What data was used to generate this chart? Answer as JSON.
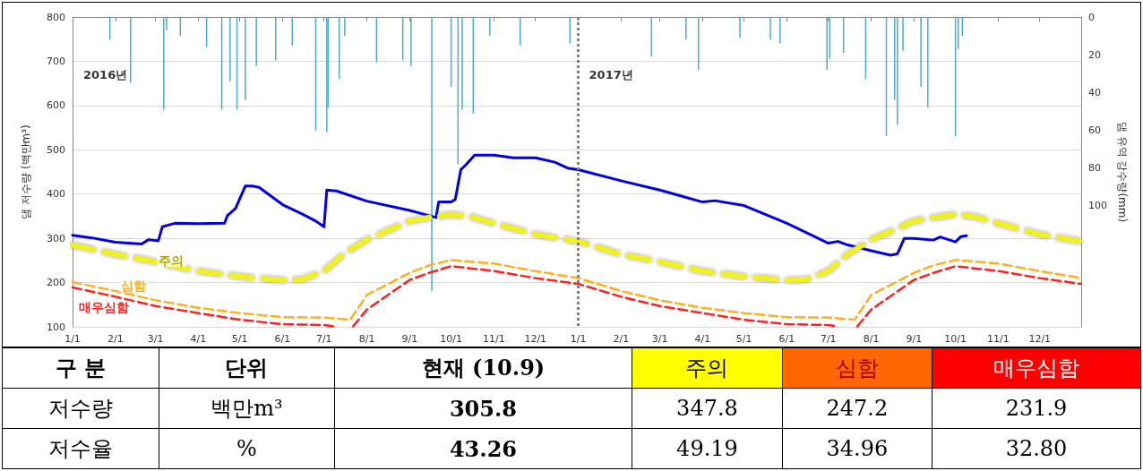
{
  "chart_data": [
    {
      "type": "line",
      "xlabel": null,
      "ylabel": "댐 저수량 (백만m³)",
      "y2label": "댐 유역 강수량(mm)",
      "annotations": [
        "2016년",
        "2017년"
      ],
      "xlim": [
        "2016-01-01",
        "2017-12-31"
      ],
      "xticks": [
        {
          "value": "2016-01-01",
          "label": "1/1"
        },
        {
          "value": "2016-02-01",
          "label": "2/1"
        },
        {
          "value": "2016-03-01",
          "label": "3/1"
        },
        {
          "value": "2016-04-01",
          "label": "4/1"
        },
        {
          "value": "2016-05-01",
          "label": "5/1"
        },
        {
          "value": "2016-06-01",
          "label": "6/1"
        },
        {
          "value": "2016-07-01",
          "label": "7/1"
        },
        {
          "value": "2016-08-01",
          "label": "8/1"
        },
        {
          "value": "2016-09-01",
          "label": "9/1"
        },
        {
          "value": "2016-10-01",
          "label": "10/1"
        },
        {
          "value": "2016-11-01",
          "label": "11/1"
        },
        {
          "value": "2016-12-01",
          "label": "12/1"
        },
        {
          "value": "2017-01-01",
          "label": "1/1"
        },
        {
          "value": "2017-02-01",
          "label": "2/1"
        },
        {
          "value": "2017-03-01",
          "label": "3/1"
        },
        {
          "value": "2017-04-01",
          "label": "4/1"
        },
        {
          "value": "2017-05-01",
          "label": "5/1"
        },
        {
          "value": "2017-06-01",
          "label": "6/1"
        },
        {
          "value": "2017-07-01",
          "label": "7/1"
        },
        {
          "value": "2017-08-01",
          "label": "8/1"
        },
        {
          "value": "2017-09-01",
          "label": "9/1"
        },
        {
          "value": "2017-10-01",
          "label": "10/1"
        },
        {
          "value": "2017-11-01",
          "label": "11/1"
        },
        {
          "value": "2017-12-01",
          "label": "12/1"
        }
      ],
      "ylim": [
        100,
        800
      ],
      "yticks": [
        100,
        200,
        300,
        400,
        500,
        600,
        700,
        800
      ],
      "y2lim": [
        164,
        0
      ],
      "y2ticks": [
        0,
        20,
        40,
        60,
        80,
        100
      ],
      "grid": "y",
      "legend": false,
      "ref_lines": [
        {
          "axis": "x",
          "value": "2017-01-01",
          "color": "#808080",
          "line_style": "dotted"
        }
      ],
      "series": [
        {
          "type": "bar",
          "axis": "y2",
          "color": "#4bacc6",
          "x": [
            "2016-01-28",
            "2016-02-12",
            "2016-03-07",
            "2016-03-09",
            "2016-03-19",
            "2016-04-07",
            "2016-04-18",
            "2016-04-24",
            "2016-04-29",
            "2016-05-05",
            "2016-05-13",
            "2016-05-27",
            "2016-06-08",
            "2016-06-25",
            "2016-07-03",
            "2016-07-04",
            "2016-07-12",
            "2016-07-16",
            "2016-08-08",
            "2016-08-27",
            "2016-09-02",
            "2016-09-17",
            "2016-10-01",
            "2016-10-06",
            "2016-10-09",
            "2016-10-17",
            "2016-10-29",
            "2016-11-20",
            "2016-12-26",
            "2017-02-23",
            "2017-03-20",
            "2017-03-29",
            "2017-04-28",
            "2017-05-20",
            "2017-05-27",
            "2017-06-30",
            "2017-07-02",
            "2017-07-12",
            "2017-07-28",
            "2017-08-12",
            "2017-08-18",
            "2017-08-20",
            "2017-08-24",
            "2017-09-06",
            "2017-09-11",
            "2017-10-01",
            "2017-10-03",
            "2017-10-06"
          ],
          "values": [
            12,
            35,
            49,
            7,
            10,
            16,
            49,
            34,
            49,
            44,
            26,
            23,
            15,
            60,
            61,
            48,
            33,
            10,
            24,
            23,
            26,
            145,
            37,
            78,
            49,
            51,
            10,
            15,
            14,
            21,
            12,
            28,
            11,
            12,
            14,
            28,
            22,
            19,
            33,
            63,
            44,
            57,
            18,
            37,
            48,
            63,
            17,
            10
          ]
        },
        {
          "type": "line",
          "color": "#0000e0",
          "x": [
            "2016-01-01",
            "2016-01-15",
            "2016-02-01",
            "2016-02-20",
            "2016-02-25",
            "2016-03-03",
            "2016-03-06",
            "2016-03-15",
            "2016-04-01",
            "2016-04-20",
            "2016-04-22",
            "2016-04-28",
            "2016-05-05",
            "2016-05-10",
            "2016-05-15",
            "2016-06-01",
            "2016-06-15",
            "2016-06-25",
            "2016-07-01",
            "2016-07-03",
            "2016-07-10",
            "2016-08-01",
            "2016-09-01",
            "2016-09-20",
            "2016-09-22",
            "2016-10-01",
            "2016-10-04",
            "2016-10-08",
            "2016-10-12",
            "2016-10-18",
            "2016-11-01",
            "2016-11-15",
            "2016-12-01",
            "2016-12-15",
            "2016-12-25",
            "2017-01-01",
            "2017-02-01",
            "2017-03-01",
            "2017-04-01",
            "2017-04-10",
            "2017-05-01",
            "2017-06-01",
            "2017-07-01",
            "2017-07-08",
            "2017-07-15",
            "2017-08-01",
            "2017-08-15",
            "2017-08-20",
            "2017-08-25",
            "2017-09-01",
            "2017-09-15",
            "2017-09-20",
            "2017-10-01",
            "2017-10-05",
            "2017-10-09"
          ],
          "values": [
            307,
            301,
            291,
            287,
            297,
            294,
            326,
            334,
            333,
            334,
            351,
            368,
            418,
            418,
            415,
            376,
            355,
            339,
            326,
            409,
            407,
            384,
            363,
            347,
            382,
            382,
            388,
            455,
            467,
            488,
            488,
            482,
            482,
            472,
            458,
            455,
            430,
            409,
            382,
            385,
            374,
            334,
            289,
            293,
            285,
            272,
            262,
            265,
            300,
            300,
            296,
            303,
            292,
            304,
            306
          ]
        },
        {
          "type": "line",
          "name": "주의",
          "color": "#f0f020",
          "line_style": "dashed",
          "x": [
            "2016-01-01",
            "2016-02-01",
            "2016-03-01",
            "2016-04-01",
            "2016-05-01",
            "2016-06-01",
            "2016-06-15",
            "2016-07-01",
            "2016-07-15",
            "2016-08-01",
            "2016-09-01",
            "2016-09-15",
            "2016-10-01",
            "2016-10-15",
            "2016-11-01",
            "2016-12-01",
            "2017-01-01",
            "2017-02-01",
            "2017-03-01",
            "2017-04-01",
            "2017-05-01",
            "2017-06-01",
            "2017-06-15",
            "2017-07-01",
            "2017-07-15",
            "2017-08-01",
            "2017-09-01",
            "2017-09-15",
            "2017-10-01",
            "2017-10-15",
            "2017-11-01",
            "2017-12-01",
            "2017-12-31"
          ],
          "values": [
            285,
            264,
            247,
            226,
            214,
            205,
            207,
            226,
            264,
            297,
            339,
            347,
            354,
            349,
            334,
            309,
            293,
            264,
            247,
            226,
            214,
            205,
            207,
            226,
            264,
            297,
            339,
            347,
            354,
            349,
            334,
            309,
            293
          ]
        },
        {
          "type": "line",
          "name": "심함",
          "color": "#ffb020",
          "line_style": "dashed",
          "x": [
            "2016-01-01",
            "2016-02-01",
            "2016-03-01",
            "2016-04-01",
            "2016-05-01",
            "2016-06-01",
            "2016-07-01",
            "2016-07-20",
            "2016-08-01",
            "2016-09-01",
            "2016-09-15",
            "2016-10-01",
            "2016-11-01",
            "2016-12-01",
            "2017-01-01",
            "2017-02-01",
            "2017-03-01",
            "2017-04-01",
            "2017-05-01",
            "2017-06-01",
            "2017-07-01",
            "2017-07-20",
            "2017-08-01",
            "2017-09-01",
            "2017-09-15",
            "2017-10-01",
            "2017-11-01",
            "2017-12-01",
            "2017-12-31"
          ],
          "values": [
            201,
            181,
            160,
            143,
            131,
            122,
            121,
            116,
            172,
            222,
            239,
            251,
            243,
            226,
            210,
            181,
            160,
            143,
            131,
            122,
            121,
            116,
            172,
            222,
            239,
            251,
            243,
            226,
            210
          ]
        },
        {
          "type": "line",
          "name": "매우심함",
          "color": "#ff2020",
          "line_style": "dashed",
          "x": [
            "2016-01-01",
            "2016-02-01",
            "2016-03-01",
            "2016-04-01",
            "2016-05-01",
            "2016-06-01",
            "2016-07-01",
            "2016-07-08",
            "2016-07-15",
            "2016-07-22",
            "2016-08-01",
            "2016-09-01",
            "2016-09-15",
            "2016-10-01",
            "2016-11-01",
            "2016-12-01",
            "2017-01-01",
            "2017-02-01",
            "2017-03-01",
            "2017-04-01",
            "2017-05-01",
            "2017-06-01",
            "2017-07-01",
            "2017-07-08",
            "2017-07-15",
            "2017-07-22",
            "2017-08-01",
            "2017-09-01",
            "2017-09-15",
            "2017-10-01",
            "2017-11-01",
            "2017-12-01",
            "2017-12-31"
          ],
          "values": [
            189,
            168,
            147,
            131,
            116,
            106,
            104,
            101,
            null,
            101,
            139,
            206,
            222,
            237,
            226,
            210,
            197,
            168,
            147,
            131,
            116,
            106,
            104,
            101,
            null,
            101,
            139,
            206,
            222,
            237,
            226,
            210,
            197
          ]
        }
      ]
    },
    {
      "type": "other",
      "categories": [
        "구 분",
        "단위",
        "현재 (10.9)",
        "주의",
        "심함",
        "매우심함"
      ],
      "colors": [
        null,
        null,
        null,
        "#ffff00",
        "#ff6600",
        "#ff0000"
      ],
      "cells": [
        [
          "저수량",
          "백만m³",
          "305.8",
          "347.8",
          "247.2",
          "231.9"
        ],
        [
          "저수율",
          "%",
          "43.26",
          "49.19",
          "34.96",
          "32.80"
        ]
      ]
    }
  ]
}
